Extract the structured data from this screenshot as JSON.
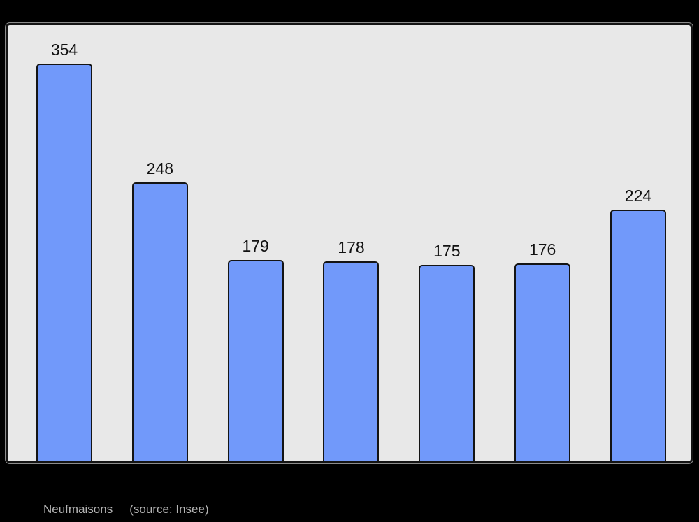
{
  "chart_data": {
    "type": "bar",
    "values": [
      354,
      248,
      179,
      178,
      175,
      176,
      224
    ],
    "value_labels": [
      "354",
      "248",
      "179",
      "178",
      "175",
      "176",
      "224"
    ],
    "categories": [],
    "title": "Neufmaisons",
    "source": "(source: Insee)",
    "xlabel": "",
    "ylabel": "",
    "ylim": [
      0,
      388
    ],
    "grid": false,
    "legend": false,
    "layout": {
      "page_background": "#000000",
      "panel_background": "#e8e8e8",
      "panel_border_color": "#141414",
      "bar_color": "#7199fa",
      "bar_border_color": "#141414",
      "value_label_color": "#111111",
      "caption_color": "#b4b4b4"
    }
  }
}
